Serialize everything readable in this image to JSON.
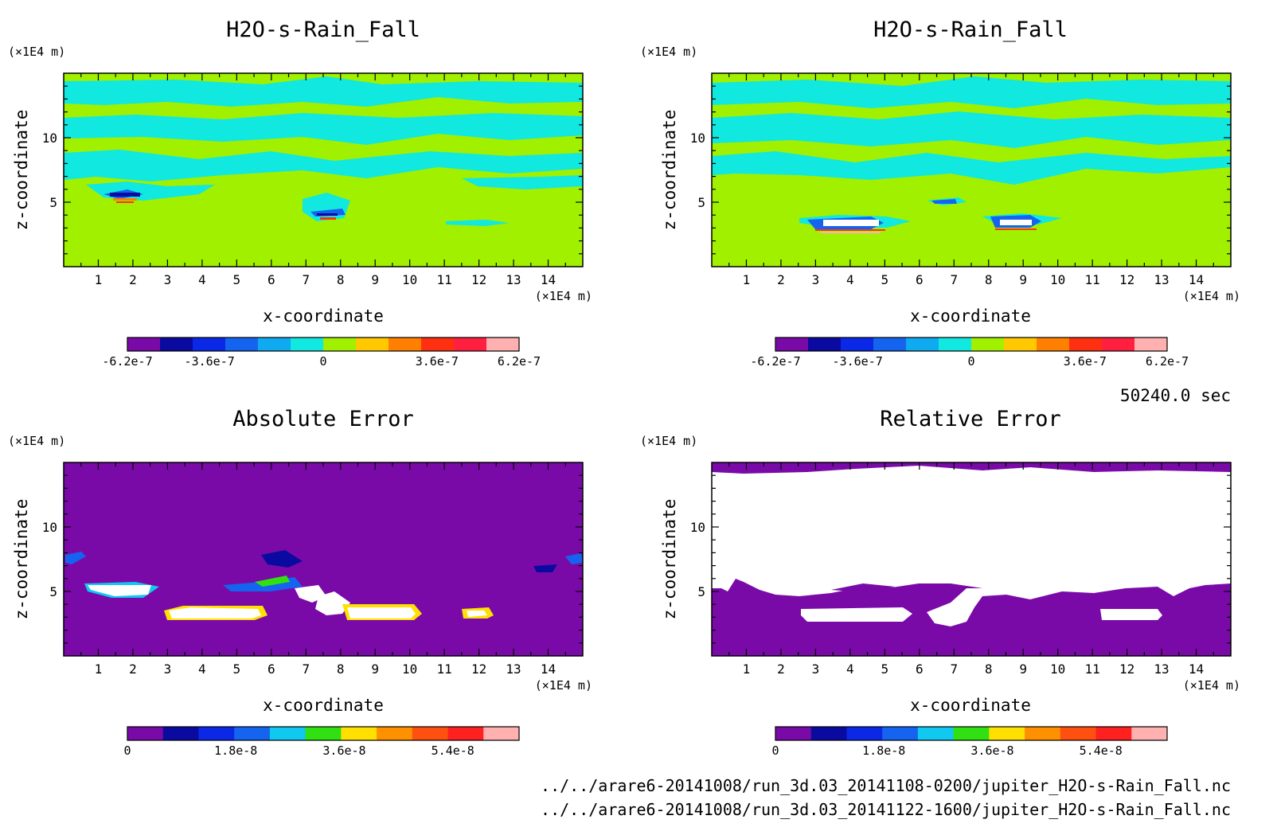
{
  "chart_data": [
    {
      "type": "heatmap",
      "title": "H2O-s-Rain_Fall",
      "xlabel": "x-coordinate",
      "ylabel": "z-coordinate",
      "x_unit": "(×1E4 m)",
      "y_unit": "(×1E4 m)",
      "x_ticks": [
        "1",
        "2",
        "3",
        "4",
        "5",
        "6",
        "7",
        "8",
        "9",
        "10",
        "11",
        "12",
        "13",
        "14"
      ],
      "y_ticks": [
        "5",
        "10"
      ],
      "xlim": [
        0,
        15
      ],
      "ylim": [
        0,
        15
      ],
      "colorbar": {
        "colors": [
          "#7a0aa8",
          "#0a0aa0",
          "#0a28e6",
          "#1464f0",
          "#10aaf0",
          "#10e8e0",
          "#a0f000",
          "#ffc800",
          "#ff8000",
          "#ff3010",
          "#ff2040",
          "#ffb0b0"
        ],
        "labels": [
          "-6.2e-7",
          "-3.6e-7",
          "0",
          "3.6e-7",
          "6.2e-7"
        ],
        "range": [
          -6.2e-07,
          6.2e-07
        ]
      }
    },
    {
      "type": "heatmap",
      "title": "H2O-s-Rain_Fall",
      "xlabel": "x-coordinate",
      "ylabel": "z-coordinate",
      "x_unit": "(×1E4 m)",
      "y_unit": "(×1E4 m)",
      "x_ticks": [
        "1",
        "2",
        "3",
        "4",
        "5",
        "6",
        "7",
        "8",
        "9",
        "10",
        "11",
        "12",
        "13",
        "14"
      ],
      "y_ticks": [
        "5",
        "10"
      ],
      "xlim": [
        0,
        15
      ],
      "ylim": [
        0,
        15
      ],
      "colorbar": {
        "colors": [
          "#7a0aa8",
          "#0a0aa0",
          "#0a28e6",
          "#1464f0",
          "#10aaf0",
          "#10e8e0",
          "#a0f000",
          "#ffc800",
          "#ff8000",
          "#ff3010",
          "#ff2040",
          "#ffb0b0"
        ],
        "labels": [
          "-6.2e-7",
          "-3.6e-7",
          "0",
          "3.6e-7",
          "6.2e-7"
        ],
        "range": [
          -6.2e-07,
          6.2e-07
        ]
      }
    },
    {
      "type": "heatmap",
      "title": "Absolute Error",
      "xlabel": "x-coordinate",
      "ylabel": "z-coordinate",
      "x_unit": "(×1E4 m)",
      "y_unit": "(×1E4 m)",
      "x_ticks": [
        "1",
        "2",
        "3",
        "4",
        "5",
        "6",
        "7",
        "8",
        "9",
        "10",
        "11",
        "12",
        "13",
        "14"
      ],
      "y_ticks": [
        "5",
        "10"
      ],
      "xlim": [
        0,
        15
      ],
      "ylim": [
        0,
        15
      ],
      "colorbar": {
        "colors": [
          "#7a0aa8",
          "#0a0aa0",
          "#0a28e6",
          "#1464f0",
          "#10c8f0",
          "#30e010",
          "#ffe000",
          "#ff9000",
          "#ff5010",
          "#ff2020",
          "#ffb0b0"
        ],
        "labels": [
          "0",
          "1.8e-8",
          "3.6e-8",
          "5.4e-8"
        ],
        "range": [
          0,
          6.5e-08
        ]
      }
    },
    {
      "type": "heatmap",
      "title": "Relative Error",
      "xlabel": "x-coordinate",
      "ylabel": "z-coordinate",
      "x_unit": "(×1E4 m)",
      "y_unit": "(×1E4 m)",
      "x_ticks": [
        "1",
        "2",
        "3",
        "4",
        "5",
        "6",
        "7",
        "8",
        "9",
        "10",
        "11",
        "12",
        "13",
        "14"
      ],
      "y_ticks": [
        "5",
        "10"
      ],
      "xlim": [
        0,
        15
      ],
      "ylim": [
        0,
        15
      ],
      "colorbar": {
        "colors": [
          "#7a0aa8",
          "#0a0aa0",
          "#0a28e6",
          "#1464f0",
          "#10c8f0",
          "#30e010",
          "#ffe000",
          "#ff9000",
          "#ff5010",
          "#ff2020",
          "#ffb0b0"
        ],
        "labels": [
          "0",
          "1.8e-8",
          "3.6e-8",
          "5.4e-8"
        ],
        "range": [
          0,
          6.5e-08
        ]
      }
    }
  ],
  "footer": {
    "time": "50240.0 sec",
    "file1": "../../arare6-20141008/run_3d.03_20141108-0200/jupiter_H2O-s-Rain_Fall.nc",
    "file2": "../../arare6-20141008/run_3d.03_20141122-1600/jupiter_H2O-s-Rain_Fall.nc"
  }
}
